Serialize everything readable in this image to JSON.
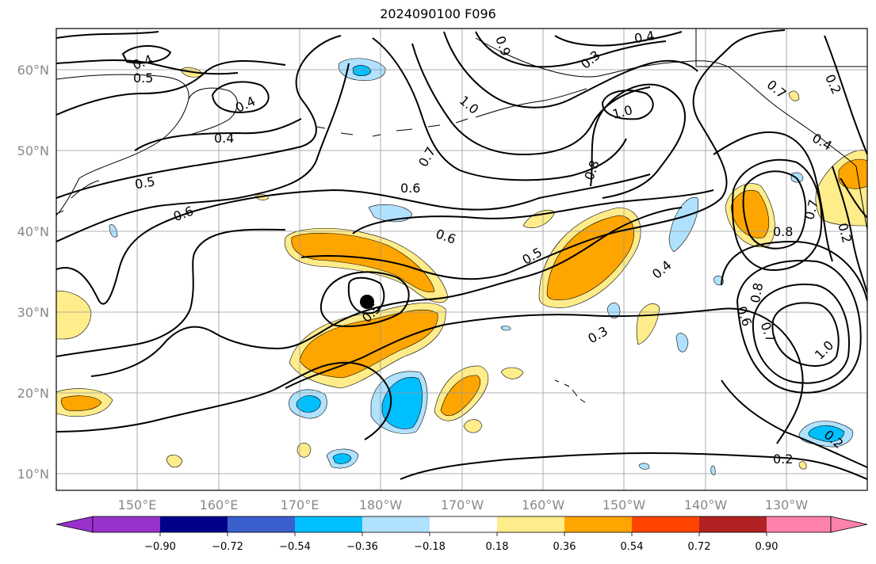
{
  "title": "2024090100 F096",
  "lat_labels": [
    "60°N",
    "50°N",
    "40°N",
    "30°N",
    "20°N",
    "10°N"
  ],
  "lon_labels": [
    "150°E",
    "160°E",
    "170°E",
    "180°W",
    "170°W",
    "160°W",
    "150°W",
    "140°W",
    "130°W"
  ],
  "colorbar": {
    "ticks": [
      "−0.90",
      "−0.72",
      "−0.54",
      "−0.36",
      "−0.18",
      "0.18",
      "0.36",
      "0.54",
      "0.72",
      "0.90"
    ],
    "colors": [
      "#9932cc",
      "#00008b",
      "#3a5fcd",
      "#00bfff",
      "#b0e2ff",
      "#ffffff",
      "#ffec8b",
      "#ffa500",
      "#ff4500",
      "#b22222",
      "#ff82ab"
    ]
  },
  "contour_labels": [
    {
      "text": "0.4"
    },
    {
      "text": "0.5"
    },
    {
      "text": "0.4"
    },
    {
      "text": "0.4"
    },
    {
      "text": "0.5"
    },
    {
      "text": "0.6"
    },
    {
      "text": "0.6"
    },
    {
      "text": "0.7"
    },
    {
      "text": "0.6"
    },
    {
      "text": "1.0"
    },
    {
      "text": "0.9"
    },
    {
      "text": "0.3"
    },
    {
      "text": "0.4"
    },
    {
      "text": "1.0"
    },
    {
      "text": "0.8"
    },
    {
      "text": "0.5"
    },
    {
      "text": "0.4"
    },
    {
      "text": "0.5"
    },
    {
      "text": "0.3"
    },
    {
      "text": "0.8"
    },
    {
      "text": "0.7"
    },
    {
      "text": "0.8"
    },
    {
      "text": "0.6"
    },
    {
      "text": "0.7"
    },
    {
      "text": "1.0"
    },
    {
      "text": "0.2"
    },
    {
      "text": "0.7"
    },
    {
      "text": "0.4"
    },
    {
      "text": "0.2"
    },
    {
      "text": "0.2"
    },
    {
      "text": "0.2"
    }
  ],
  "colors": {
    "frame": "#000000",
    "grid": "#999999",
    "contour": "#000000",
    "coast": "#000000"
  }
}
